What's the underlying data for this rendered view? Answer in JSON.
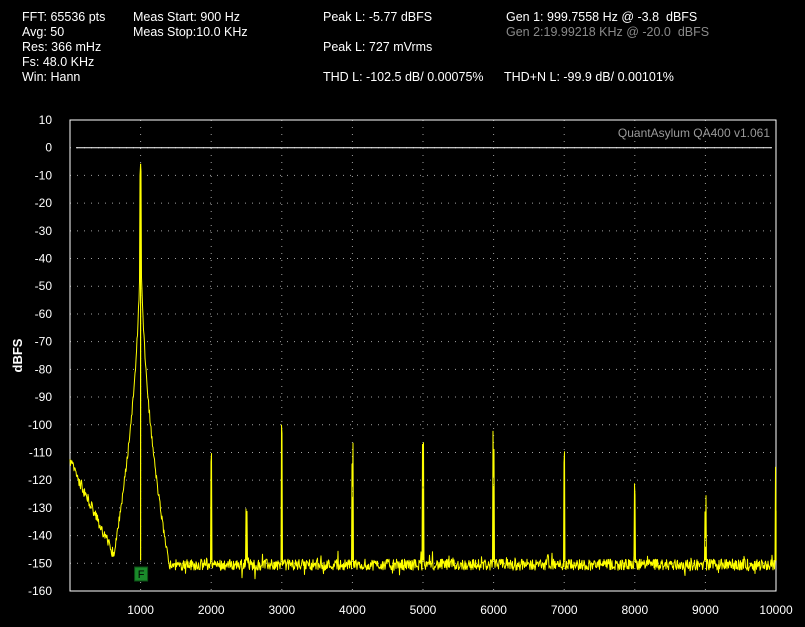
{
  "header": {
    "fft": "FFT: 65536 pts",
    "avg": "Avg: 50",
    "res": "Res: 366 mHz",
    "fs": "Fs: 48.0 KHz",
    "win": "Win: Hann",
    "meas_start": "Meas Start: 900 Hz",
    "meas_stop": "Meas Stop:10.0 KHz",
    "peak_dbfs": "Peak L: -5.77 dBFS",
    "peak_vrms": "Peak L: 727 mVrms",
    "thd": "THD L: -102.5 dB/ 0.00075%",
    "thdn": "THD+N L: -99.9 dB/ 0.00101%",
    "gen1": "Gen 1: 999.7558 Hz @ -3.8  dBFS",
    "gen2": "Gen 2:19.99218 KHz @ -20.0  dBFS"
  },
  "colors": {
    "trace": "#ffff00",
    "grid": "#d8d8d8",
    "axis": "#ffffff",
    "marker": "#1a8a2a",
    "background": "#000000"
  },
  "chart_data": {
    "type": "line",
    "watermark": "QuantAsylum QA400 v1.061",
    "xlabel": "",
    "ylabel": "dBFS",
    "xlim": [
      0,
      10000
    ],
    "ylim": [
      -160,
      10
    ],
    "x_ticks": [
      "1000",
      "2000",
      "3000",
      "4000",
      "5000",
      "6000",
      "7000",
      "8000",
      "9000",
      "10000"
    ],
    "y_ticks": [
      "10",
      "0",
      "-10",
      "-20",
      "-30",
      "-40",
      "-50",
      "-60",
      "-70",
      "-80",
      "-90",
      "-100",
      "-110",
      "-120",
      "-130",
      "-140",
      "-150",
      "-160"
    ],
    "grid": true,
    "reference_line": 0,
    "marker_label": "F",
    "marker_x": 1000,
    "noise_floor_db": -149,
    "series": [
      {
        "peaks": [
          {
            "x": 1000,
            "y": -5.8
          },
          {
            "x": 2000,
            "y": -120
          },
          {
            "x": 2500,
            "y": -146
          },
          {
            "x": 3000,
            "y": -110
          },
          {
            "x": 4000,
            "y": -126
          },
          {
            "x": 5000,
            "y": -123
          },
          {
            "x": 6000,
            "y": -122
          },
          {
            "x": 7000,
            "y": -120
          },
          {
            "x": 8000,
            "y": -131
          },
          {
            "x": 9000,
            "y": -144
          },
          {
            "x": 10000,
            "y": -131
          }
        ]
      }
    ]
  }
}
